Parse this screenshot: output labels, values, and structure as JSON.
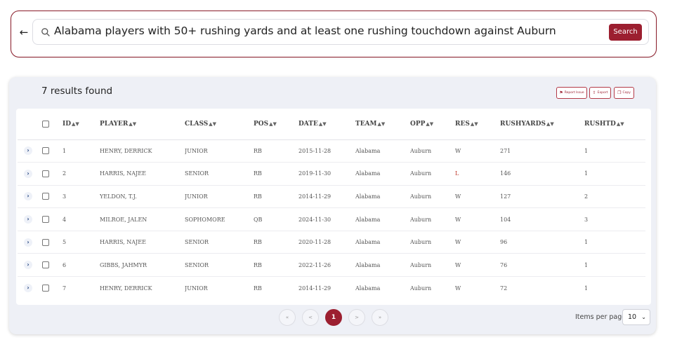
{
  "search": {
    "query": "Alabama players with 50+ rushing yards and at least one rushing touchdown against Auburn",
    "button_label": "Search"
  },
  "results": {
    "title": "7 results found",
    "actions": {
      "report": "Report Issue",
      "export": "Export",
      "copy": "Copy"
    }
  },
  "table": {
    "headers": {
      "id": "ID",
      "player": "PLAYER",
      "class": "CLASS",
      "pos": "POS",
      "date": "DATE",
      "team": "TEAM",
      "opp": "OPP",
      "res": "RES",
      "rushyards": "RUSHYARDS",
      "rushtd": "RUSHTD"
    },
    "rows": [
      {
        "id": "1",
        "player": "HENRY, DERRICK",
        "class": "JUNIOR",
        "pos": "RB",
        "date": "2015-11-28",
        "team": "Alabama",
        "opp": "Auburn",
        "res": "W",
        "rushyards": "271",
        "rushtd": "1"
      },
      {
        "id": "2",
        "player": "HARRIS, NAJEE",
        "class": "SENIOR",
        "pos": "RB",
        "date": "2019-11-30",
        "team": "Alabama",
        "opp": "Auburn",
        "res": "L",
        "rushyards": "146",
        "rushtd": "1"
      },
      {
        "id": "3",
        "player": "YELDON, T.J.",
        "class": "JUNIOR",
        "pos": "RB",
        "date": "2014-11-29",
        "team": "Alabama",
        "opp": "Auburn",
        "res": "W",
        "rushyards": "127",
        "rushtd": "2"
      },
      {
        "id": "4",
        "player": "MILROE, JALEN",
        "class": "SOPHOMORE",
        "pos": "QB",
        "date": "2024-11-30",
        "team": "Alabama",
        "opp": "Auburn",
        "res": "W",
        "rushyards": "104",
        "rushtd": "3"
      },
      {
        "id": "5",
        "player": "HARRIS, NAJEE",
        "class": "SENIOR",
        "pos": "RB",
        "date": "2020-11-28",
        "team": "Alabama",
        "opp": "Auburn",
        "res": "W",
        "rushyards": "96",
        "rushtd": "1"
      },
      {
        "id": "6",
        "player": "GIBBS, JAHMYR",
        "class": "SENIOR",
        "pos": "RB",
        "date": "2022-11-26",
        "team": "Alabama",
        "opp": "Auburn",
        "res": "W",
        "rushyards": "76",
        "rushtd": "1"
      },
      {
        "id": "7",
        "player": "HENRY, DERRICK",
        "class": "JUNIOR",
        "pos": "RB",
        "date": "2014-11-29",
        "team": "Alabama",
        "opp": "Auburn",
        "res": "W",
        "rushyards": "72",
        "rushtd": "1"
      }
    ]
  },
  "pagination": {
    "first": "«",
    "prev": "<",
    "current_page": "1",
    "next": ">",
    "last": "»",
    "items_per_page_label": "Items per page",
    "items_per_page_value": "10"
  },
  "colors": {
    "accent": "#9c1f30",
    "loss": "#c0392b"
  }
}
